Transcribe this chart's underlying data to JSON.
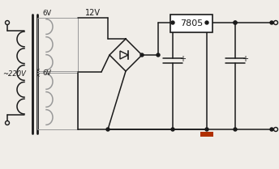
{
  "bg_color": "#f0ede8",
  "line_color": "#1a1a1a",
  "gray_color": "#999999",
  "red_color": "#b03000",
  "text_color": "#1a1a1a",
  "fig_width": 3.44,
  "fig_height": 2.09,
  "dpi": 100,
  "label_220": "~220V",
  "label_6v_top": "6V",
  "label_12v": "12V",
  "label_6v_bot": "6V",
  "label_7805": "7805"
}
